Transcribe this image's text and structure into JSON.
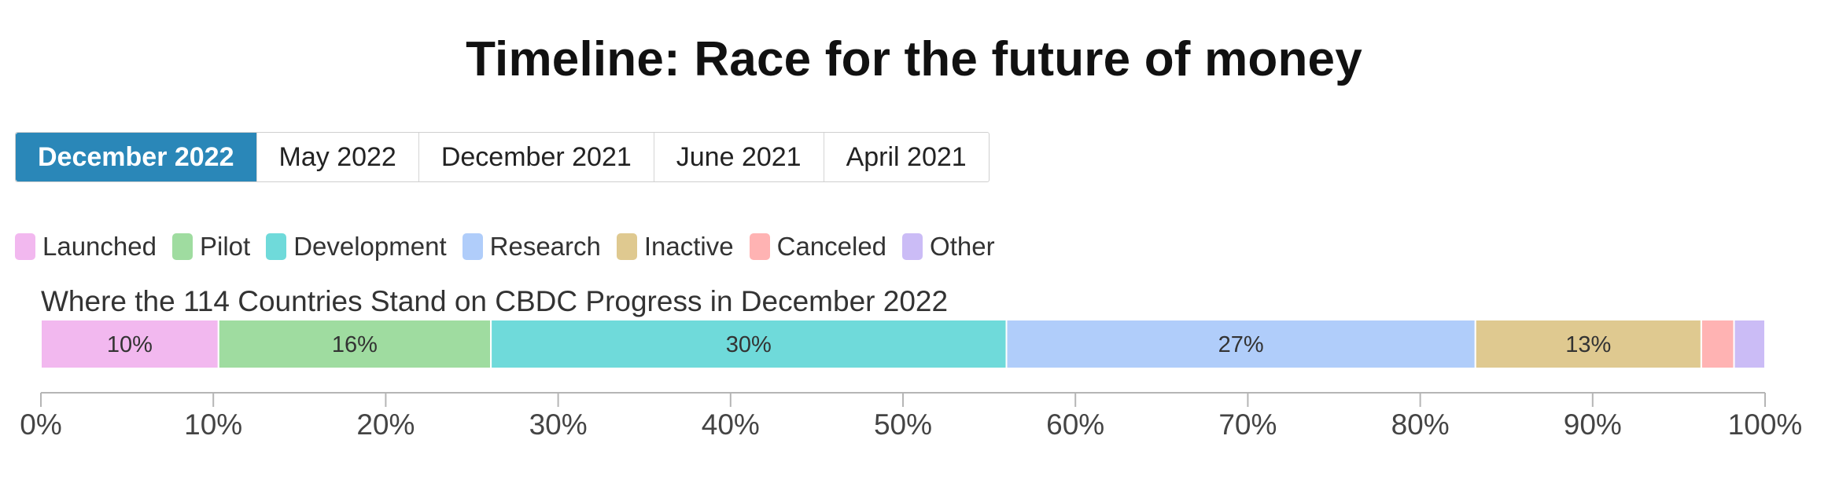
{
  "title": "Timeline: Race for the future of money",
  "tabs": [
    {
      "label": "December 2022",
      "active": true
    },
    {
      "label": "May 2022",
      "active": false
    },
    {
      "label": "December 2021",
      "active": false
    },
    {
      "label": "June 2021",
      "active": false
    },
    {
      "label": "April 2021",
      "active": false
    }
  ],
  "chart_data": {
    "type": "bar",
    "orientation": "horizontal",
    "stacked": "100%",
    "title": "Where the 114 Countries Stand on CBDC Progress in December 2022",
    "xlim": [
      0,
      100
    ],
    "x_ticks": [
      "0%",
      "10%",
      "20%",
      "30%",
      "40%",
      "50%",
      "60%",
      "70%",
      "80%",
      "90%",
      "100%"
    ],
    "legend_position": "top-left",
    "series": [
      {
        "name": "Launched",
        "value": 10.3,
        "label": "10%",
        "color": "#f2b8ef"
      },
      {
        "name": "Pilot",
        "value": 15.8,
        "label": "16%",
        "color": "#9fdca0"
      },
      {
        "name": "Development",
        "value": 29.9,
        "label": "30%",
        "color": "#6fdada"
      },
      {
        "name": "Research",
        "value": 27.2,
        "label": "27%",
        "color": "#b0cdfa"
      },
      {
        "name": "Inactive",
        "value": 13.1,
        "label": "13%",
        "color": "#dfc990"
      },
      {
        "name": "Canceled",
        "value": 1.9,
        "label": "",
        "color": "#ffb3b3"
      },
      {
        "name": "Other",
        "value": 1.8,
        "label": "",
        "color": "#cbbcf6"
      }
    ]
  }
}
